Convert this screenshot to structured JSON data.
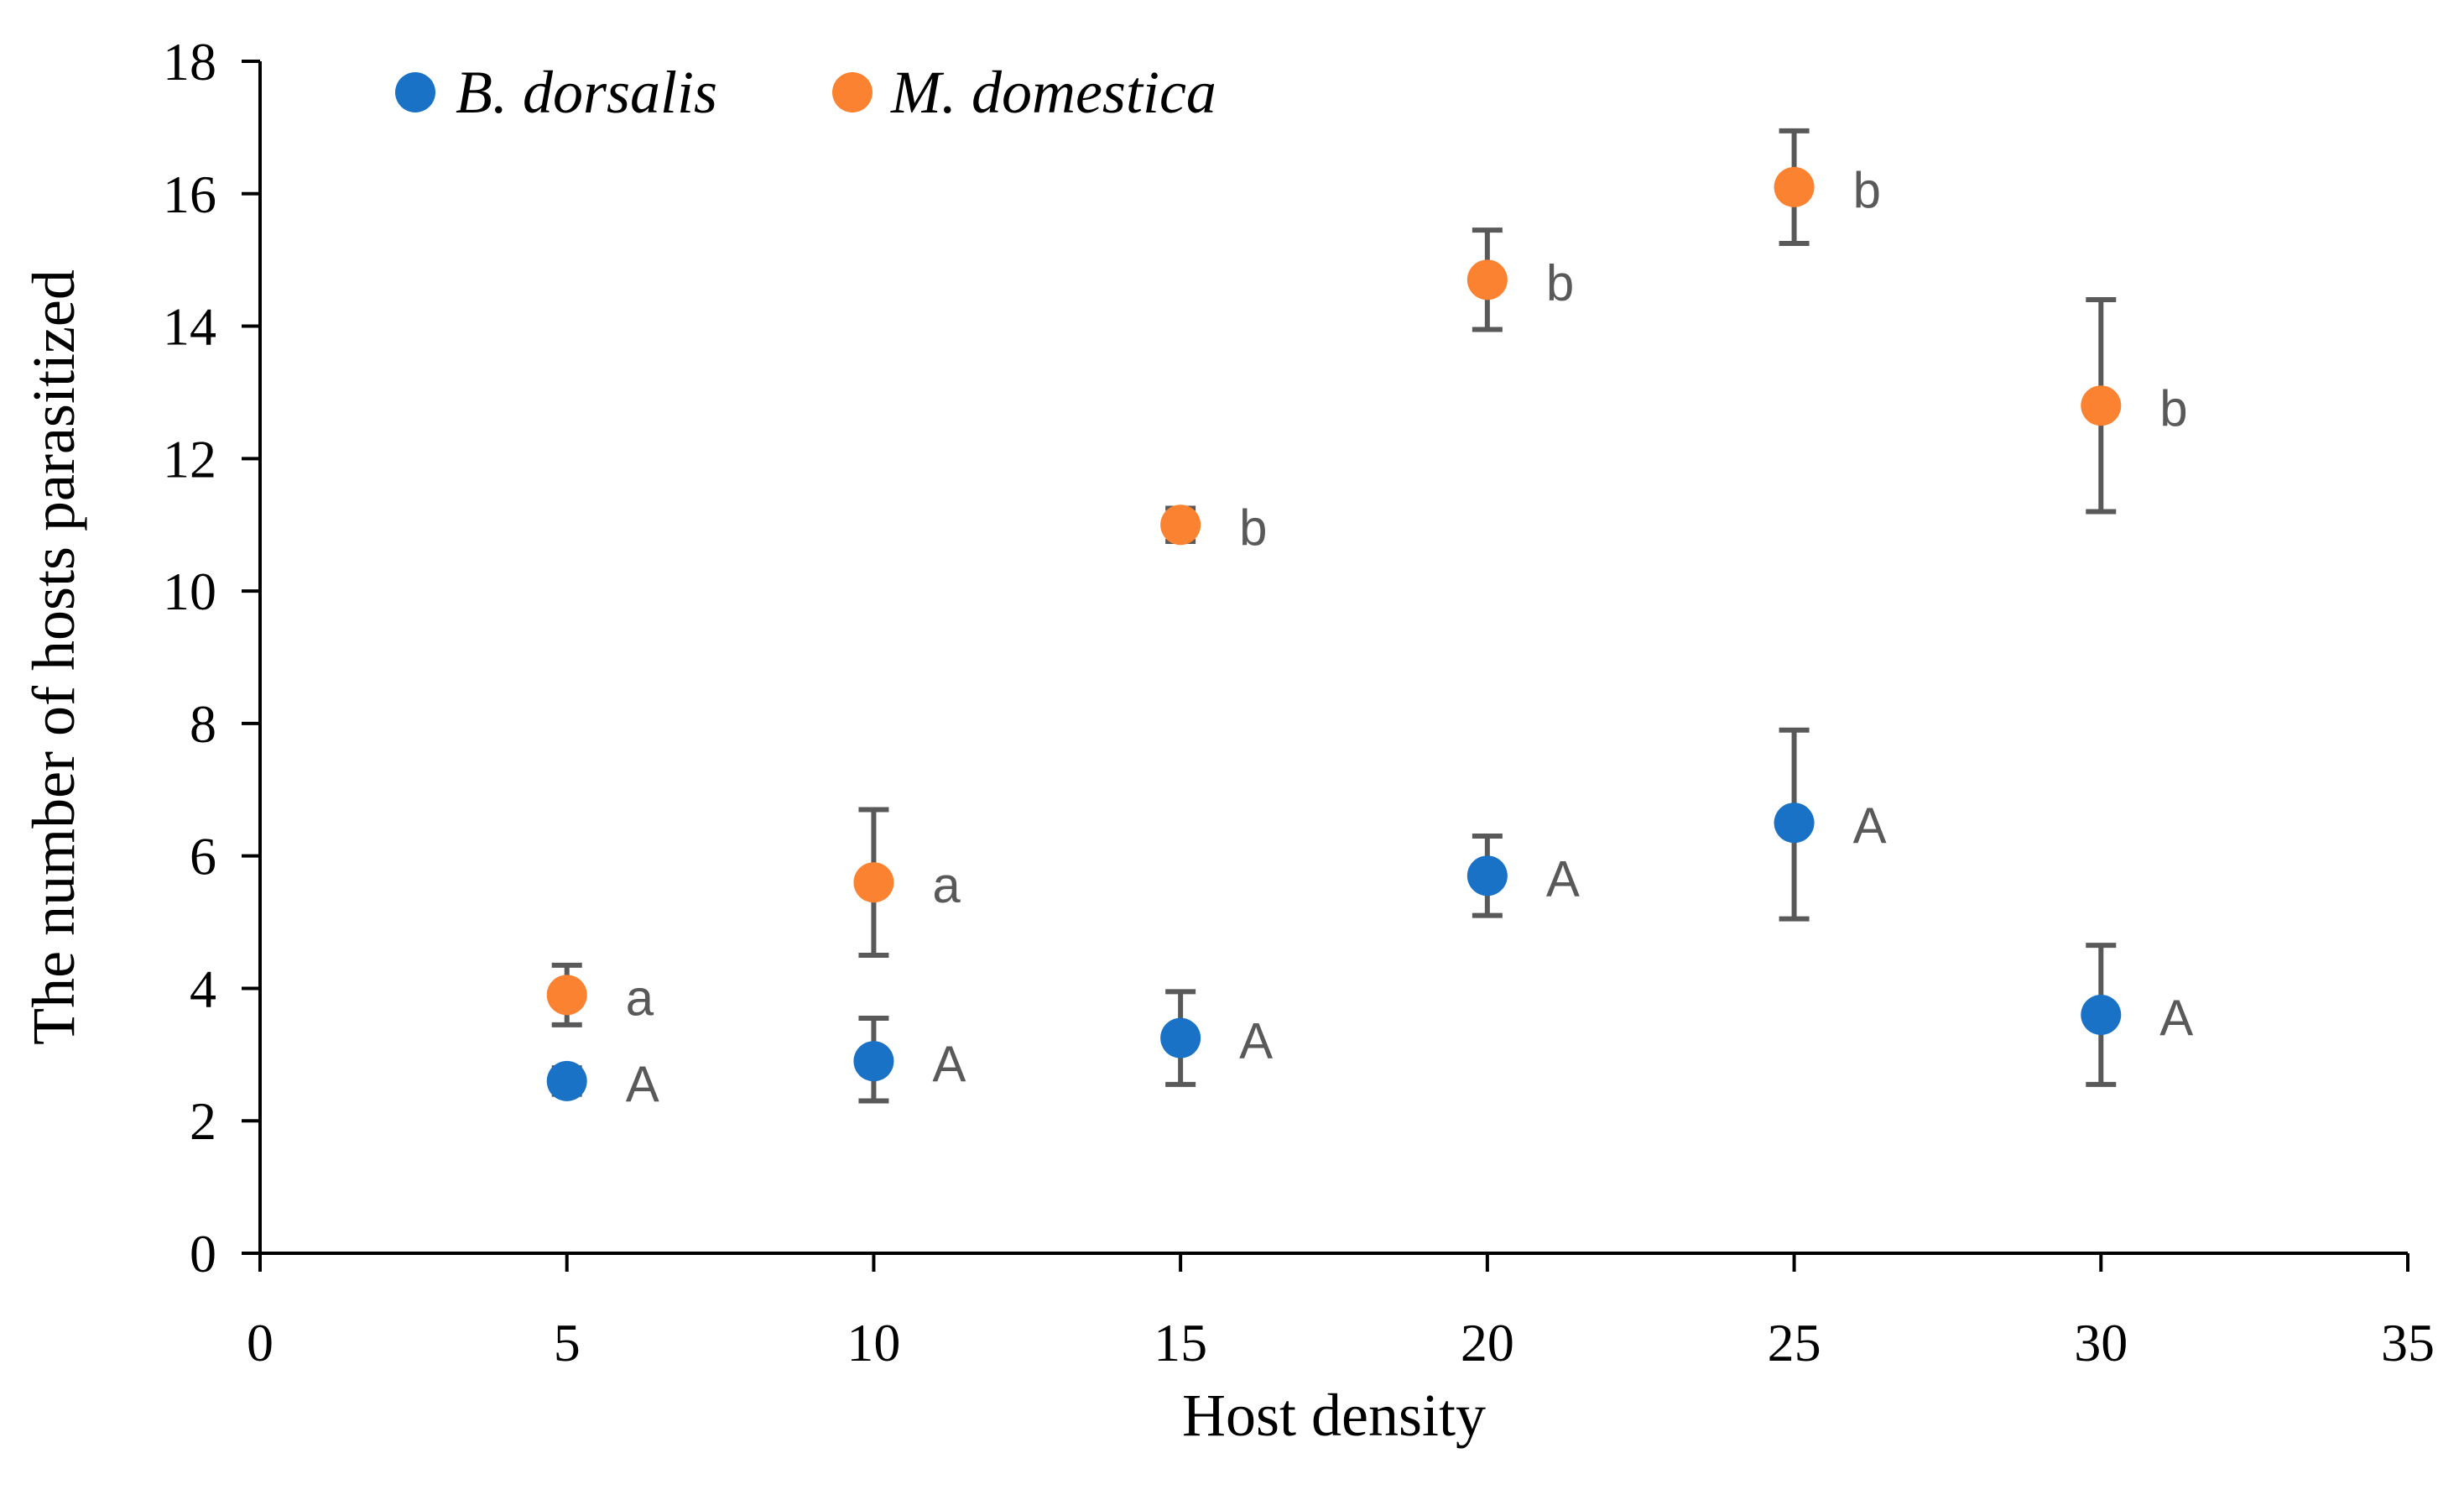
{
  "chart_data": {
    "type": "scatter",
    "xlabel": "Host density",
    "ylabel": "The number of hosts parasitized",
    "xlim": [
      0,
      35
    ],
    "ylim": [
      0,
      18
    ],
    "xticks": [
      "0",
      "5",
      "10",
      "15",
      "20",
      "25",
      "30",
      "35"
    ],
    "yticks": [
      "0",
      "2",
      "4",
      "6",
      "8",
      "10",
      "12",
      "14",
      "16",
      "18"
    ],
    "grid": false,
    "legend_position": "top-left",
    "series": [
      {
        "name": "B. dorsalis",
        "color": "#1a72c6",
        "points": [
          {
            "x": 5,
            "y": 2.6,
            "err_low": 2.4,
            "err_high": 2.8,
            "label": "A"
          },
          {
            "x": 10,
            "y": 2.9,
            "err_low": 2.3,
            "err_high": 3.55,
            "label": "A"
          },
          {
            "x": 15,
            "y": 3.25,
            "err_low": 2.55,
            "err_high": 3.95,
            "label": "A"
          },
          {
            "x": 20,
            "y": 5.7,
            "err_low": 5.1,
            "err_high": 6.3,
            "label": "A"
          },
          {
            "x": 25,
            "y": 6.5,
            "err_low": 5.05,
            "err_high": 7.9,
            "label": "A"
          },
          {
            "x": 30,
            "y": 3.6,
            "err_low": 2.55,
            "err_high": 4.65,
            "label": "A"
          }
        ]
      },
      {
        "name": "M. domestica",
        "color": "#fb8230",
        "points": [
          {
            "x": 5,
            "y": 3.9,
            "err_low": 3.45,
            "err_high": 4.35,
            "label": "a"
          },
          {
            "x": 10,
            "y": 5.6,
            "err_low": 4.5,
            "err_high": 6.7,
            "label": "a"
          },
          {
            "x": 15,
            "y": 11.0,
            "err_low": 10.75,
            "err_high": 11.25,
            "label": "b"
          },
          {
            "x": 20,
            "y": 14.7,
            "err_low": 13.95,
            "err_high": 15.45,
            "label": "b"
          },
          {
            "x": 25,
            "y": 16.1,
            "err_low": 15.25,
            "err_high": 16.95,
            "label": "b"
          },
          {
            "x": 30,
            "y": 12.8,
            "err_low": 11.2,
            "err_high": 14.4,
            "label": "b"
          }
        ]
      }
    ]
  }
}
